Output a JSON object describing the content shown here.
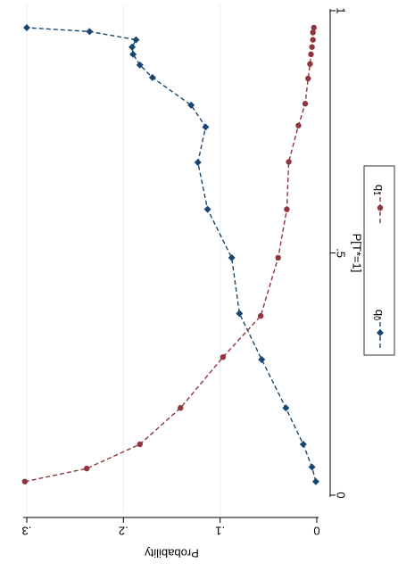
{
  "chart_data": {
    "type": "line",
    "orientation": "rotated-180 (page shown upside down; x runs top-to-bottom, y runs right-to-left)",
    "xlabel": "P[T*=1]",
    "ylabel": "Probability",
    "xlim": [
      0,
      1
    ],
    "ylim": [
      0,
      0.32
    ],
    "x_ticks": [
      {
        "v": 0,
        "label": "0"
      },
      {
        "v": 0.5,
        "label": ".5"
      },
      {
        "v": 1,
        "label": "1"
      }
    ],
    "y_ticks": [
      {
        "v": 0,
        "label": "0"
      },
      {
        "v": 0.1,
        "label": ".1"
      },
      {
        "v": 0.2,
        "label": ".2"
      },
      {
        "v": 0.3,
        "label": ".3"
      }
    ],
    "grid": true,
    "legend_position": "bottom",
    "series": [
      {
        "name": "q0",
        "color": "#1a476f",
        "marker": "diamond",
        "line": "dashed",
        "points": [
          [
            0.028,
            0.001
          ],
          [
            0.058,
            0.005
          ],
          [
            0.105,
            0.014
          ],
          [
            0.18,
            0.032
          ],
          [
            0.28,
            0.057
          ],
          [
            0.375,
            0.08
          ],
          [
            0.49,
            0.088
          ],
          [
            0.59,
            0.113
          ],
          [
            0.687,
            0.123
          ],
          [
            0.76,
            0.115
          ],
          [
            0.805,
            0.13
          ],
          [
            0.862,
            0.17
          ],
          [
            0.888,
            0.183
          ],
          [
            0.91,
            0.19
          ],
          [
            0.925,
            0.191
          ],
          [
            0.94,
            0.187
          ],
          [
            0.957,
            0.235
          ],
          [
            0.965,
            0.3
          ]
        ]
      },
      {
        "name": "q1",
        "color": "#90353b",
        "marker": "circle",
        "line": "dashed",
        "points": [
          [
            0.028,
            0.302
          ],
          [
            0.055,
            0.238
          ],
          [
            0.105,
            0.183
          ],
          [
            0.18,
            0.141
          ],
          [
            0.285,
            0.097
          ],
          [
            0.37,
            0.058
          ],
          [
            0.49,
            0.04
          ],
          [
            0.59,
            0.031
          ],
          [
            0.688,
            0.029
          ],
          [
            0.763,
            0.019
          ],
          [
            0.808,
            0.012
          ],
          [
            0.86,
            0.009
          ],
          [
            0.89,
            0.007
          ],
          [
            0.91,
            0.006
          ],
          [
            0.925,
            0.005
          ],
          [
            0.94,
            0.004
          ],
          [
            0.955,
            0.004
          ],
          [
            0.965,
            0.003
          ]
        ]
      }
    ],
    "legend": [
      {
        "series": "q0",
        "label": "q",
        "sub": "0"
      },
      {
        "series": "q1",
        "label": "q",
        "sub": "1"
      }
    ]
  }
}
